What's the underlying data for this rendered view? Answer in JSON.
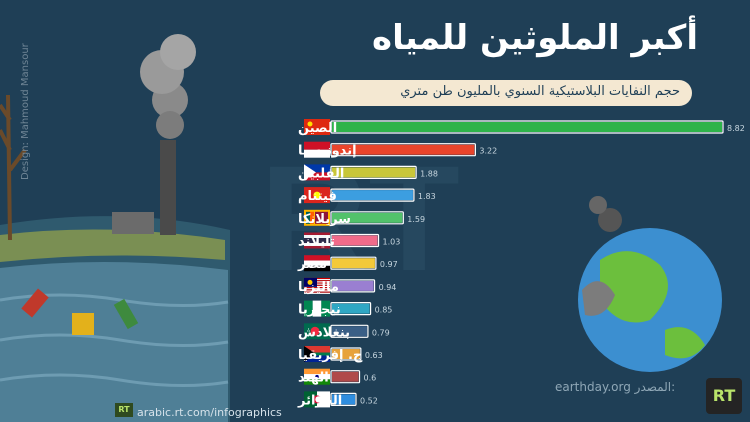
{
  "title": "أكبر الملوثين للمياه",
  "subtitle": "حجم النفايات البلاستيكية السنوي بالمليون طن متري",
  "side_credit": "Design: Mahmoud Mansour",
  "source": {
    "label": "المصدر:",
    "value": "earthday.org"
  },
  "website": "arabic.rt.com/infographics",
  "logo_text": "RT",
  "colors": {
    "background": "#1f3f56",
    "bar_outline": "#ffffff"
  },
  "chart_data": {
    "type": "bar",
    "orientation": "horizontal",
    "title": "أكبر الملوثين للمياه",
    "subtitle": "حجم النفايات البلاستيكية السنوي بالمليون طن متري",
    "categories": [
      "الصين",
      "إندونيسيا",
      "الفلبين",
      "فيتنام",
      "سريلانكا",
      "تايلاند",
      "مصر",
      "ماليزيا",
      "نيجيريا",
      "بنغلادش",
      "ج. إفريقيا",
      "الهند",
      "الجزائر"
    ],
    "values": [
      8.82,
      3.22,
      1.88,
      1.83,
      1.59,
      1.03,
      0.97,
      0.94,
      0.85,
      0.79,
      0.63,
      0.6,
      0.52
    ],
    "value_labels": [
      "8.82",
      "3.22",
      "1.88",
      "1.83",
      "1.59",
      "1.03",
      "0.97",
      "0.94",
      "0.85",
      "0.79",
      "0.63",
      "0.6",
      "0.52"
    ],
    "bar_colors": [
      "#2eb34a",
      "#e8452c",
      "#c8c63a",
      "#3c9ee0",
      "#52c26b",
      "#f06b8a",
      "#f3c93a",
      "#9a7fd1",
      "#2fa7c4",
      "#3a5f86",
      "#e7a23b",
      "#b04a4a",
      "#2f8ee0"
    ],
    "flags": [
      "china-flag",
      "indonesia-flag",
      "philippines-flag",
      "vietnam-flag",
      "sri-lanka-flag",
      "thailand-flag",
      "egypt-flag",
      "malaysia-flag",
      "nigeria-flag",
      "bangladesh-flag",
      "south-africa-flag",
      "india-flag",
      "algeria-flag"
    ],
    "xlim": [
      0,
      8.82
    ],
    "grid": false,
    "legend": "none"
  }
}
